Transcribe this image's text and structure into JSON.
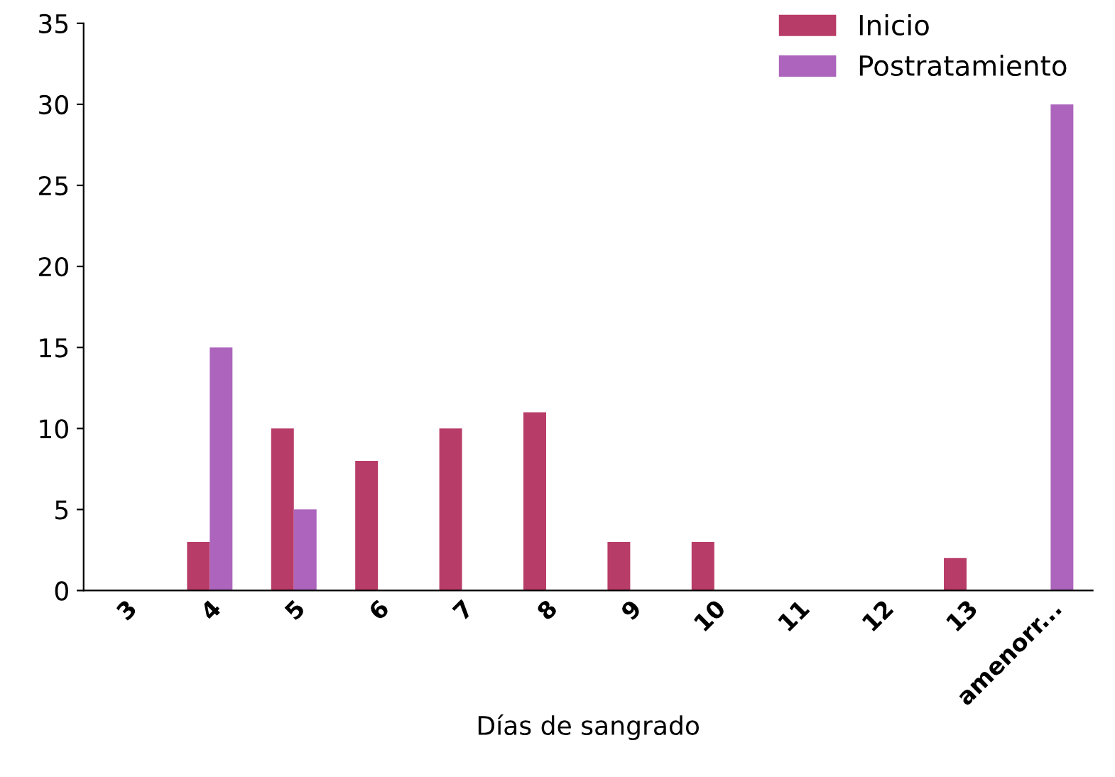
{
  "chart_data": {
    "type": "bar",
    "xlabel": "Días de sangrado",
    "categories": [
      "3",
      "4",
      "5",
      "6",
      "7",
      "8",
      "9",
      "10",
      "11",
      "12",
      "13",
      "amenorr..."
    ],
    "series": [
      {
        "name": "Inicio",
        "color": "#b83c68",
        "values": [
          0,
          3,
          10,
          8,
          10,
          11,
          3,
          3,
          0,
          0,
          2,
          0
        ]
      },
      {
        "name": "Postratamiento",
        "color": "#ac64bc",
        "values": [
          0,
          15,
          5,
          0,
          0,
          0,
          0,
          0,
          0,
          0,
          0,
          30
        ]
      }
    ],
    "ylim": [
      0,
      35
    ],
    "yticks": [
      0,
      5,
      10,
      15,
      20,
      25,
      30,
      35
    ],
    "grid": false,
    "legend": "top right"
  }
}
